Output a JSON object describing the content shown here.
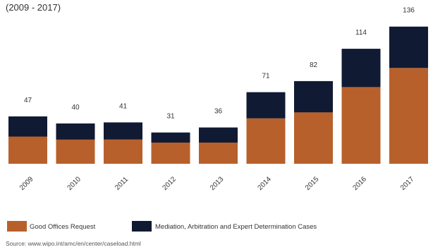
{
  "header": {
    "subtitle": "(2009 - 2017)"
  },
  "chart_data": {
    "type": "bar",
    "stacked": true,
    "categories": [
      "2009",
      "2010",
      "2011",
      "2012",
      "2013",
      "2014",
      "2015",
      "2016",
      "2017"
    ],
    "series": [
      {
        "name": "Good Offices Request",
        "color": "#b8602b",
        "values": [
          27,
          24,
          24,
          21,
          21,
          45,
          51,
          76,
          95
        ]
      },
      {
        "name": "Mediation, Arbitration and Expert Determination  Cases",
        "color": "#111a33",
        "values": [
          20,
          16,
          17,
          10,
          15,
          26,
          31,
          38,
          41
        ]
      }
    ],
    "totals": [
      47,
      40,
      41,
      31,
      36,
      71,
      82,
      114,
      136
    ],
    "total_labels": [
      "47",
      "40",
      "41",
      "31",
      "36",
      "71",
      "82",
      "114",
      "136"
    ],
    "ylim": [
      0,
      140
    ],
    "grid": false,
    "legend_position": "bottom-left"
  },
  "source": {
    "text": "Source: www.wipo.int/amc/en/center/caseload.html"
  }
}
